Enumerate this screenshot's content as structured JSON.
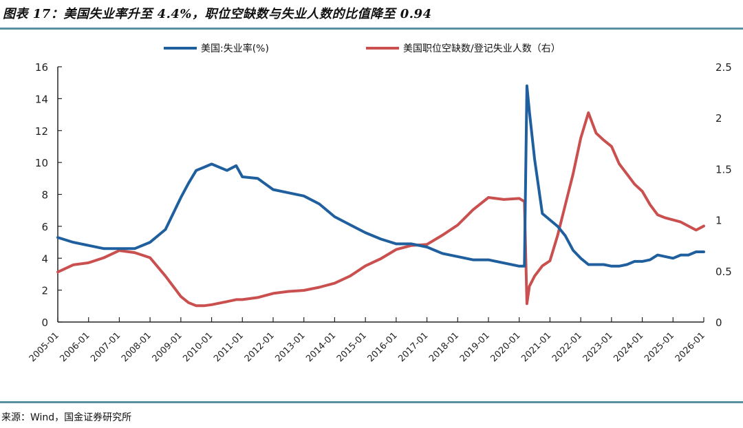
{
  "title": "图表 17：美国失业率升至 4.4%，职位空缺数与失业人数的比值降至 0.94",
  "source": "来源：Wind，国金证券研究所",
  "colors": {
    "unemployment": "#1f5f9e",
    "ratio": "#c9504f",
    "rule": "#5b8fa3"
  },
  "chart_data": {
    "type": "line",
    "title": "美国失业率升至 4.4%，职位空缺数与失业人数的比值降至 0.94",
    "legend": [
      "美国:失业率(%)",
      "美国职位空缺数/登记失业人数（右）"
    ],
    "legend_position": "top",
    "grid": false,
    "x_ticks": [
      "2005-01",
      "2006-01",
      "2007-01",
      "2008-01",
      "2009-01",
      "2010-01",
      "2011-01",
      "2012-01",
      "2013-01",
      "2014-01",
      "2015-01",
      "2016-01",
      "2017-01",
      "2018-01",
      "2019-01",
      "2020-01",
      "2021-01",
      "2022-01",
      "2023-01",
      "2024-01",
      "2025-01",
      "2026-01"
    ],
    "y_left": {
      "label": "",
      "range": [
        0,
        16
      ],
      "ticks": [
        0,
        2,
        4,
        6,
        8,
        10,
        12,
        14,
        16
      ]
    },
    "y_right": {
      "label": "",
      "range": [
        0,
        2.5
      ],
      "ticks": [
        "0",
        "0.5",
        "1",
        "1.5",
        "2",
        "2.5"
      ]
    },
    "x": [
      2005.0,
      2005.5,
      2006.0,
      2006.5,
      2007.0,
      2007.5,
      2008.0,
      2008.5,
      2009.0,
      2009.25,
      2009.5,
      2009.75,
      2010.0,
      2010.5,
      2010.8,
      2011.0,
      2011.5,
      2012.0,
      2012.5,
      2013.0,
      2013.5,
      2014.0,
      2014.5,
      2015.0,
      2015.5,
      2016.0,
      2016.5,
      2017.0,
      2017.5,
      2018.0,
      2018.5,
      2019.0,
      2019.5,
      2020.0,
      2020.17,
      2020.25,
      2020.33,
      2020.5,
      2020.75,
      2021.0,
      2021.25,
      2021.5,
      2021.75,
      2022.0,
      2022.25,
      2022.5,
      2022.75,
      2023.0,
      2023.25,
      2023.5,
      2023.75,
      2024.0,
      2024.25,
      2024.5,
      2024.75,
      2025.0,
      2025.25,
      2025.5,
      2025.75,
      2026.0
    ],
    "series": [
      {
        "name": "美国:失业率(%)",
        "axis": "left",
        "values": [
          5.3,
          5.0,
          4.8,
          4.6,
          4.6,
          4.6,
          5.0,
          5.8,
          7.8,
          8.7,
          9.5,
          9.7,
          9.9,
          9.5,
          9.8,
          9.1,
          9.0,
          8.3,
          8.1,
          7.9,
          7.4,
          6.6,
          6.1,
          5.6,
          5.2,
          4.9,
          4.9,
          4.7,
          4.3,
          4.1,
          3.9,
          3.9,
          3.7,
          3.5,
          3.5,
          14.8,
          13.2,
          10.2,
          6.8,
          6.4,
          6.0,
          5.4,
          4.5,
          4.0,
          3.6,
          3.6,
          3.6,
          3.5,
          3.5,
          3.6,
          3.8,
          3.8,
          3.9,
          4.2,
          4.1,
          4.0,
          4.2,
          4.2,
          4.4,
          4.4
        ]
      },
      {
        "name": "美国职位空缺数/登记失业人数（右）",
        "axis": "right",
        "values": [
          0.49,
          0.56,
          0.58,
          0.63,
          0.7,
          0.68,
          0.63,
          0.45,
          0.25,
          0.19,
          0.16,
          0.16,
          0.17,
          0.2,
          0.22,
          0.22,
          0.24,
          0.28,
          0.3,
          0.31,
          0.34,
          0.38,
          0.45,
          0.55,
          0.62,
          0.71,
          0.75,
          0.76,
          0.85,
          0.95,
          1.1,
          1.22,
          1.2,
          1.21,
          1.18,
          0.18,
          0.35,
          0.45,
          0.55,
          0.6,
          0.85,
          1.15,
          1.45,
          1.8,
          2.05,
          1.85,
          1.78,
          1.72,
          1.55,
          1.45,
          1.35,
          1.28,
          1.15,
          1.05,
          1.02,
          1.0,
          0.98,
          0.94,
          0.9,
          0.94
        ]
      }
    ]
  }
}
